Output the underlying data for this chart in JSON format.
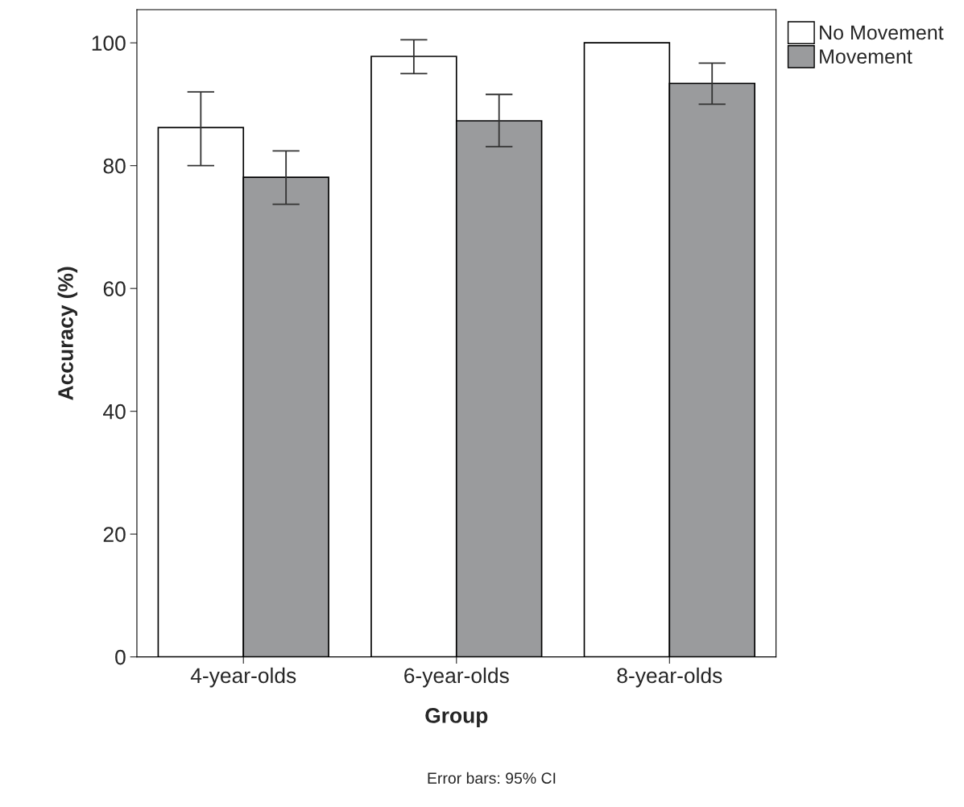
{
  "chart_data": {
    "type": "bar",
    "xlabel": "Group",
    "ylabel": "Accuracy (%)",
    "categories": [
      "4-year-olds",
      "6-year-olds",
      "8-year-olds"
    ],
    "series": [
      {
        "name": "No Movement",
        "color": "#ffffff",
        "values": [
          86.2,
          97.8,
          100
        ],
        "errors": [
          [
            80.0,
            92.0
          ],
          [
            95.0,
            100.5
          ],
          null
        ]
      },
      {
        "name": "Movement",
        "color": "#9a9b9d",
        "values": [
          78.1,
          87.3,
          93.4
        ],
        "errors": [
          [
            73.7,
            82.4
          ],
          [
            83.1,
            91.6
          ],
          [
            90.0,
            96.7
          ]
        ]
      }
    ],
    "ylim": [
      0,
      105.4
    ],
    "yticks": [
      0,
      20,
      40,
      60,
      80,
      100
    ],
    "grid": false,
    "legend": "top right",
    "annotations": [
      "Error bars: 95% CI"
    ]
  }
}
